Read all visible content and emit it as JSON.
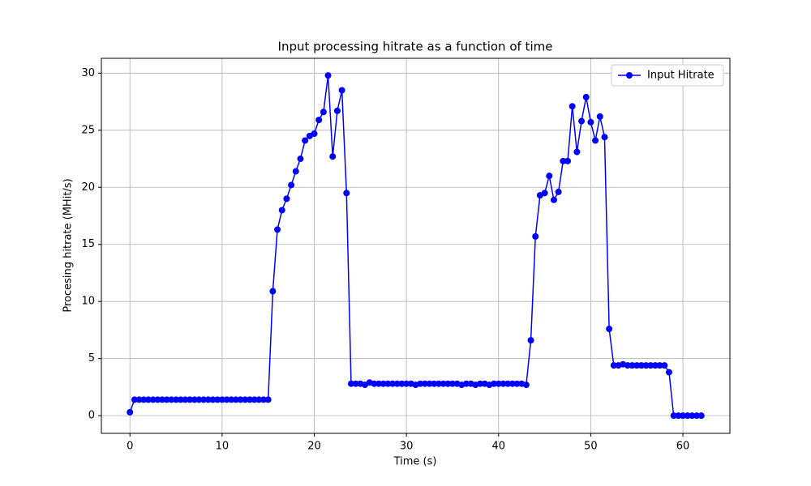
{
  "chart_data": {
    "type": "line",
    "title": "Input processing hitrate as a function of time",
    "x_label": "Time (s)",
    "y_label": "Procesing hitrate (MHit/s)",
    "x": [
      0,
      0.5,
      1,
      1.5,
      2,
      2.5,
      3,
      3.5,
      4,
      4.5,
      5,
      5.5,
      6,
      6.5,
      7,
      7.5,
      8,
      8.5,
      9,
      9.5,
      10,
      10.5,
      11,
      11.5,
      12,
      12.5,
      13,
      13.5,
      14,
      14.5,
      15,
      15.5,
      16,
      16.5,
      17,
      17.5,
      18,
      18.5,
      19,
      19.5,
      20,
      20.5,
      21,
      21.5,
      22,
      22.5,
      23,
      23.5,
      24,
      24.5,
      25,
      25.5,
      26,
      26.5,
      27,
      27.5,
      28,
      28.5,
      29,
      29.5,
      30,
      30.5,
      31,
      31.5,
      32,
      32.5,
      33,
      33.5,
      34,
      34.5,
      35,
      35.5,
      36,
      36.5,
      37,
      37.5,
      38,
      38.5,
      39,
      39.5,
      40,
      40.5,
      41,
      41.5,
      42,
      42.5,
      43,
      43.5,
      44,
      44.5,
      45,
      45.5,
      46,
      46.5,
      47,
      47.5,
      48,
      48.5,
      49,
      49.5,
      50,
      50.5,
      51,
      51.5,
      52,
      52.5,
      53,
      53.5,
      54,
      54.5,
      55,
      55.5,
      56,
      56.5,
      57,
      57.5,
      58,
      58.5,
      59,
      59.5,
      60,
      60.5,
      61,
      61.5,
      62
    ],
    "series": [
      {
        "name": "Input Hitrate",
        "color": "#0000ff",
        "values": [
          0.3,
          1.4,
          1.4,
          1.4,
          1.4,
          1.4,
          1.4,
          1.4,
          1.4,
          1.4,
          1.4,
          1.4,
          1.4,
          1.4,
          1.4,
          1.4,
          1.4,
          1.4,
          1.4,
          1.4,
          1.4,
          1.4,
          1.4,
          1.4,
          1.4,
          1.4,
          1.4,
          1.4,
          1.4,
          1.4,
          1.4,
          10.9,
          16.3,
          18.0,
          19.0,
          20.2,
          21.4,
          22.5,
          24.1,
          24.5,
          24.7,
          25.9,
          26.6,
          29.8,
          22.7,
          26.7,
          28.5,
          19.5,
          2.8,
          2.8,
          2.8,
          2.7,
          2.9,
          2.8,
          2.8,
          2.8,
          2.8,
          2.8,
          2.8,
          2.8,
          2.8,
          2.8,
          2.7,
          2.8,
          2.8,
          2.8,
          2.8,
          2.8,
          2.8,
          2.8,
          2.8,
          2.8,
          2.7,
          2.8,
          2.8,
          2.7,
          2.8,
          2.8,
          2.7,
          2.8,
          2.8,
          2.8,
          2.8,
          2.8,
          2.8,
          2.8,
          2.7,
          6.6,
          15.7,
          19.3,
          19.5,
          21.0,
          18.9,
          19.6,
          22.3,
          22.3,
          27.1,
          23.1,
          25.8,
          27.9,
          25.7,
          24.1,
          26.2,
          24.4,
          7.6,
          4.4,
          4.4,
          4.5,
          4.4,
          4.4,
          4.4,
          4.4,
          4.4,
          4.4,
          4.4,
          4.4,
          4.4,
          3.8,
          0,
          0,
          0,
          0,
          0,
          0,
          0
        ]
      }
    ],
    "xlim": [
      -3.1,
      65.1
    ],
    "ylim": [
      -1.55,
      31.3
    ],
    "xticks": [
      0,
      10,
      20,
      30,
      40,
      50,
      60
    ],
    "yticks": [
      0,
      5,
      10,
      15,
      20,
      25,
      30
    ],
    "grid": true,
    "legend": "upper right"
  }
}
